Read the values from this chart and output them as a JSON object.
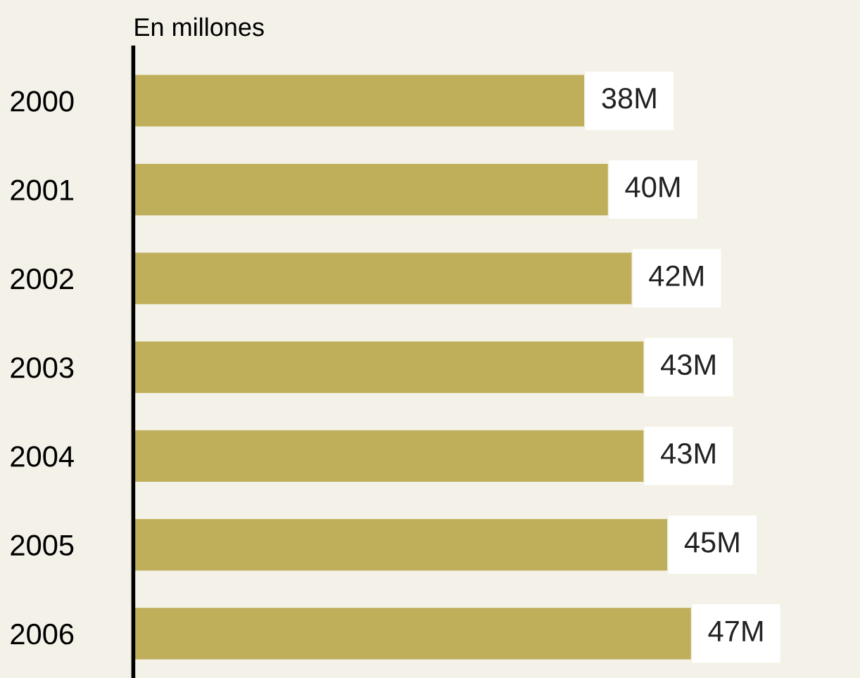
{
  "chart_data": {
    "type": "bar",
    "orientation": "horizontal",
    "subtitle": "En millones",
    "categories": [
      "2000",
      "2001",
      "2002",
      "2003",
      "2004",
      "2005",
      "2006"
    ],
    "values": [
      38,
      40,
      42,
      43,
      43,
      45,
      47
    ],
    "value_labels": [
      "38M",
      "40M",
      "42M",
      "43M",
      "43M",
      "45M",
      "47M"
    ],
    "color": "#bfae5a",
    "grid": false,
    "legend": false
  }
}
